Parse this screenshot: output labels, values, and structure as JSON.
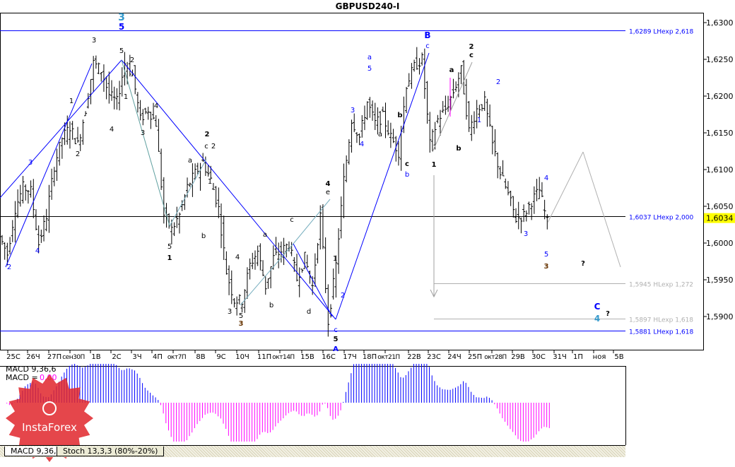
{
  "window": {
    "title": "GBPUSD240-I"
  },
  "chart_data": {
    "type": "ohlc",
    "symbol": "GBPUSD",
    "timeframe": "H4",
    "title": "GBPUSD240-I",
    "ylim": [
      1.5865,
      1.6315
    ],
    "y_ticks": [
      "1,6300",
      "1,6250",
      "1,6200",
      "1,6150",
      "1,6100",
      "1,6050",
      "1,6000",
      "1,5950",
      "1,5900"
    ],
    "y_tick_values": [
      1.63,
      1.625,
      1.62,
      1.615,
      1.61,
      1.605,
      1.6,
      1.595,
      1.59
    ],
    "x_ticks": [
      "25С",
      "26Ч",
      "27П",
      "сен30П",
      "1В",
      "2С",
      "3Ч",
      "4П",
      "окт7П",
      "8В",
      "9С",
      "10Ч",
      "11П",
      "окт14П",
      "15В",
      "16С",
      "17Ч",
      "18П",
      "окт21П",
      "22В",
      "23С",
      "24Ч",
      "25П",
      "окт28П",
      "29В",
      "30С",
      "31Ч",
      "1П",
      "ноя",
      "5В"
    ],
    "current_price": "1,6034",
    "current_price_value": 1.6034,
    "price_path": [
      1.6009,
      1.5985,
      1.6047,
      1.6076,
      1.6071,
      1.5999,
      1.6037,
      1.6105,
      1.6143,
      1.6158,
      1.6134,
      1.6182,
      1.6245,
      1.6235,
      1.6202,
      1.6192,
      1.6245,
      1.623,
      1.6168,
      1.6182,
      1.6163,
      1.6038,
      1.6018,
      1.6038,
      1.6076,
      1.6095,
      1.611,
      1.6086,
      1.6047,
      1.5961,
      1.5922,
      1.5922,
      1.597,
      1.5989,
      1.5941,
      1.598,
      1.5989,
      1.5999,
      1.5951,
      1.598,
      1.5941,
      1.6037,
      1.5893,
      1.597,
      1.6086,
      1.6168,
      1.6144,
      1.6192,
      1.6163,
      1.6172,
      1.6144,
      1.6124,
      1.6216,
      1.624,
      1.625,
      1.6134,
      1.6168,
      1.6182,
      1.6206,
      1.6235,
      1.6153,
      1.6182,
      1.6192,
      1.6134,
      1.6095,
      1.6066,
      1.6033,
      1.6038,
      1.6057,
      1.6072,
      1.6028
    ],
    "levels": [
      {
        "price": 1.6289,
        "label": "1,6289 LHexp 2,618",
        "color": "#0000ff"
      },
      {
        "price": 1.6037,
        "label": "1,6037 LHexp 2,000",
        "color": "#0000ff"
      },
      {
        "price": 1.5945,
        "label": "1,5945 HLexp 1,272",
        "color": "#b0b0b0"
      },
      {
        "price": 1.5897,
        "label": "1,5897 HLexp 1,618",
        "color": "#b0b0b0"
      },
      {
        "price": 1.5881,
        "label": "1,5881 LHexp 1,618",
        "color": "#0000ff"
      }
    ],
    "wave_labels": [
      "3",
      "5",
      "5",
      "3",
      "2",
      "1",
      "4",
      "3",
      "4",
      "1",
      "2",
      "3",
      "4",
      "2",
      "2",
      "c",
      "2",
      "a",
      "1",
      "b",
      "5",
      "1",
      "4",
      "3",
      "5",
      "3",
      "b",
      "a",
      "c",
      "d",
      "4",
      "e",
      "1",
      "2",
      "c",
      "5",
      "A",
      "3",
      "4",
      "a",
      "5",
      "a",
      "b",
      "c",
      "b",
      "B",
      "c",
      "1",
      "a",
      "b",
      "2",
      "c",
      "1",
      "2",
      "3",
      "4",
      "5",
      "3",
      "?",
      "C",
      "4",
      "?"
    ],
    "indicator": {
      "name": "MACD 9,36,6",
      "value_label": "MACD =",
      "value": "0,00",
      "positive_color": "#0000ff",
      "negative_color": "#ff00ff"
    },
    "colors": {
      "wave_line": "#0000ff",
      "bull_bear_bars": "#000000",
      "current_price_bg": "#ffff00"
    }
  },
  "tabs": [
    "MACD 9,36,6",
    "Stoch 13,3,3 (80%-20%)"
  ],
  "logo": {
    "text": "InstaForex",
    "color": "#e0262b"
  }
}
